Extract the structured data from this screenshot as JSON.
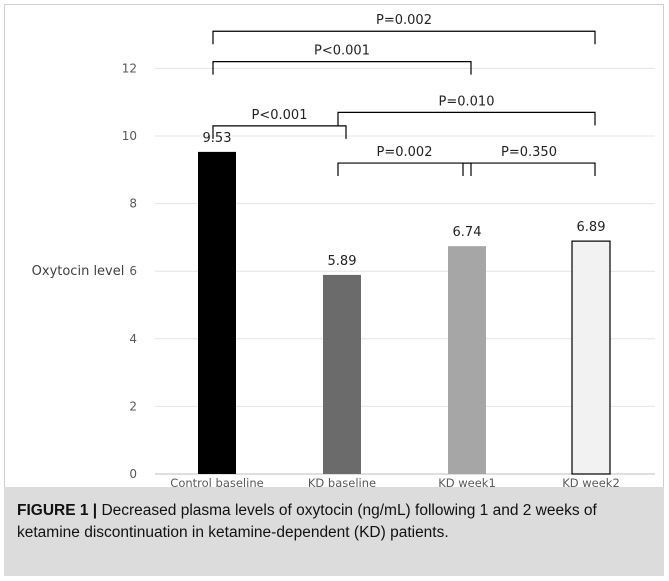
{
  "chart_data": {
    "type": "bar",
    "title": "",
    "xlabel": "",
    "ylabel": "Oxytocin level",
    "ylim": [
      0,
      13
    ],
    "yticks": [
      0,
      2,
      4,
      6,
      8,
      10,
      12
    ],
    "grid": true,
    "categories": [
      "Control baseline",
      "KD baseline",
      "KD week1",
      "KD week2"
    ],
    "values": [
      9.53,
      5.89,
      6.74,
      6.89
    ],
    "data_labels": [
      "9.53",
      "5.89",
      "6.74",
      "6.89"
    ],
    "bar_colors": [
      "#000000",
      "#6b6b6b",
      "#a6a6a6",
      "#f2f2f2"
    ],
    "comparisons": [
      {
        "from": 0,
        "to": 1,
        "label": "P<0.001",
        "level": 10.3
      },
      {
        "from": 1,
        "to": 2,
        "label": "P=0.002",
        "level": 9.2
      },
      {
        "from": 2,
        "to": 3,
        "label": "P=0.350",
        "level": 9.2
      },
      {
        "from": 1,
        "to": 3,
        "label": "P=0.010",
        "level": 10.7
      },
      {
        "from": 0,
        "to": 2,
        "label": "P<0.001",
        "level": 12.2
      },
      {
        "from": 0,
        "to": 3,
        "label": "P=0.002",
        "level": 13.1
      }
    ]
  },
  "caption": {
    "label": "FIGURE 1 |",
    "text": " Decreased plasma levels of oxytocin (ng/mL) following 1 and 2 weeks of ketamine discontinuation in ketamine-dependent (KD) patients."
  }
}
